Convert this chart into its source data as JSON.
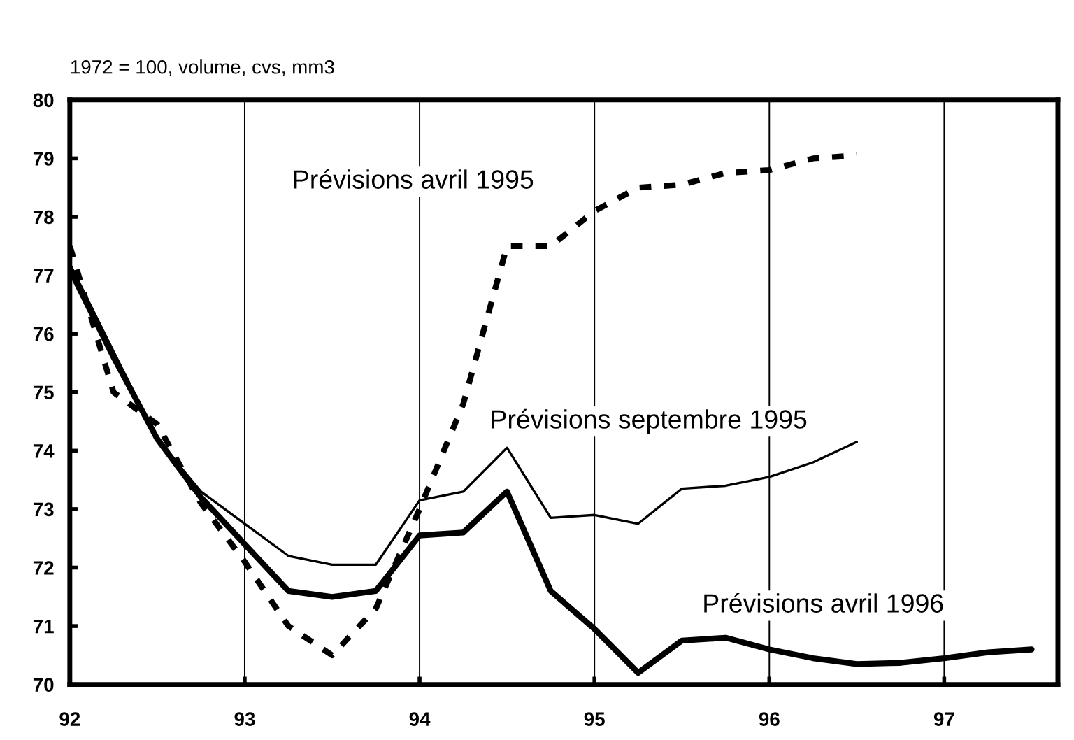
{
  "chart_data": {
    "type": "line",
    "title": "1972 = 100, volume, cvs, mm3",
    "x": [
      92,
      92.25,
      92.5,
      92.75,
      93,
      93.25,
      93.5,
      93.75,
      94,
      94.25,
      94.5,
      94.75,
      95,
      95.25,
      95.5,
      95.75,
      96,
      96.25,
      96.5,
      96.75,
      97,
      97.25,
      97.5
    ],
    "series": [
      {
        "name": "Prévisions avril 1995",
        "color": "#000000",
        "line_style": "dashed",
        "values": [
          77.5,
          75.0,
          74.45,
          73.1,
          72.1,
          71.0,
          70.5,
          71.3,
          73.0,
          74.8,
          77.5,
          77.5,
          78.1,
          78.5,
          78.55,
          78.75,
          78.8,
          79.0,
          79.05,
          null,
          null,
          null,
          null
        ]
      },
      {
        "name": "Prévisions septembre 1995",
        "color": "#000000",
        "line_style": "solid",
        "values": [
          77.2,
          75.7,
          74.2,
          73.3,
          72.75,
          72.2,
          72.05,
          72.05,
          73.15,
          73.3,
          74.05,
          72.85,
          72.9,
          72.75,
          73.35,
          73.4,
          73.55,
          73.8,
          74.15,
          null,
          null,
          null,
          null
        ]
      },
      {
        "name": "Prévisions avril 1996",
        "color": "#000000",
        "line_style": "solid",
        "values": [
          77.1,
          75.6,
          74.2,
          73.2,
          72.4,
          71.6,
          71.5,
          71.6,
          72.55,
          72.6,
          73.3,
          71.6,
          70.95,
          70.2,
          70.75,
          70.8,
          70.6,
          70.45,
          70.35,
          70.37,
          70.45,
          70.55,
          70.6
        ]
      }
    ],
    "xlim": [
      92,
      97.65
    ],
    "xticks": [
      92,
      93,
      94,
      95,
      96,
      97
    ],
    "ylim": [
      70,
      80
    ],
    "yticks": [
      70,
      71,
      72,
      73,
      74,
      75,
      76,
      77,
      78,
      79,
      80
    ],
    "grid": "x"
  }
}
